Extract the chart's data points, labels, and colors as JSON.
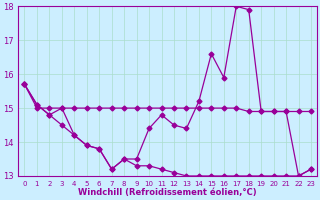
{
  "line_wavy": [
    15.7,
    15.1,
    14.8,
    15.0,
    14.2,
    13.9,
    13.8,
    13.2,
    13.5,
    13.5,
    14.4,
    14.8,
    14.5,
    14.4,
    15.2,
    16.6,
    15.9,
    18.0,
    17.9,
    14.9,
    14.9,
    14.9,
    13.0,
    13.2
  ],
  "line_flat": [
    15.7,
    15.0,
    15.0,
    15.0,
    15.0,
    15.0,
    15.0,
    15.0,
    15.0,
    15.0,
    15.0,
    15.0,
    15.0,
    15.0,
    15.0,
    15.0,
    15.0,
    15.0,
    14.9,
    14.9,
    14.9,
    14.9,
    14.9,
    14.9
  ],
  "line_decline": [
    15.7,
    15.1,
    14.8,
    14.5,
    14.2,
    13.9,
    13.8,
    13.2,
    13.5,
    13.3,
    13.3,
    13.2,
    13.1,
    13.0,
    13.0,
    13.0,
    13.0,
    13.0,
    13.0,
    13.0,
    13.0,
    13.0,
    13.0,
    13.2
  ],
  "color": "#990099",
  "bg_color": "#cceeff",
  "xlabel": "Windchill (Refroidissement éolien,°C)",
  "ylim": [
    13,
    18
  ],
  "xlim": [
    -0.5,
    23.5
  ],
  "yticks": [
    13,
    14,
    15,
    16,
    17,
    18
  ],
  "xticks": [
    0,
    1,
    2,
    3,
    4,
    5,
    6,
    7,
    8,
    9,
    10,
    11,
    12,
    13,
    14,
    15,
    16,
    17,
    18,
    19,
    20,
    21,
    22,
    23
  ]
}
